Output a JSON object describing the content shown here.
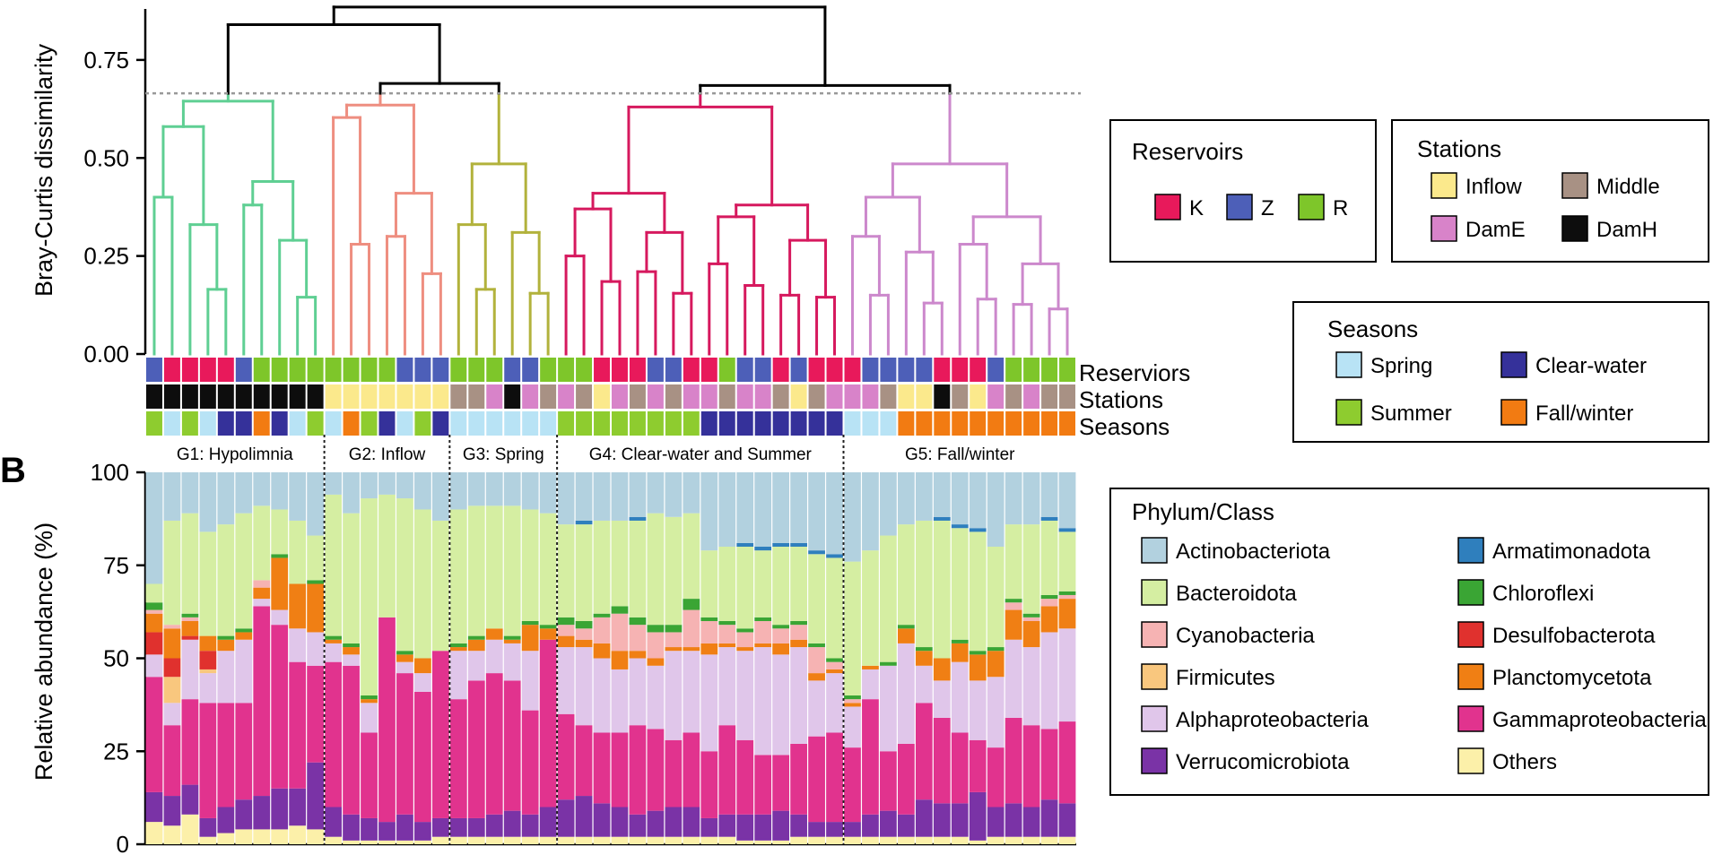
{
  "panel_b_label": "B",
  "chart_data": [
    {
      "type": "dendrogram",
      "ylabel": "Bray-Curtis dissimilarity",
      "yticks": [
        "0.00",
        "0.25",
        "0.50",
        "0.75"
      ],
      "ylim": [
        0,
        0.88
      ],
      "cut_height": 0.665,
      "groups": [
        {
          "name": "G1: Hypolimnia",
          "n": 10,
          "color": "#5fcf93",
          "height": 0.645,
          "subclusters": [
            0.58,
            0.44,
            0.4,
            0.38,
            0.33,
            0.29,
            0.28,
            0.25
          ]
        },
        {
          "name": "G2: Inflow",
          "n": 7,
          "color": "#ee8e80",
          "height": 0.635,
          "subclusters": [
            0.62,
            0.41,
            0.4,
            0.3,
            0.28
          ]
        },
        {
          "name": "G3: Spring",
          "n": 6,
          "color": "#b2b23c",
          "height": 0.485,
          "subclusters": [
            0.33,
            0.31,
            0.28,
            0.25
          ]
        },
        {
          "name": "G4: Clear-water and Summer",
          "n": 16,
          "color": "#d6195e",
          "height": 0.63,
          "subclusters": [
            0.41,
            0.38,
            0.37,
            0.35,
            0.31,
            0.29,
            0.25,
            0.23,
            0.21,
            0.15
          ]
        },
        {
          "name": "G5: Fall/winter",
          "n": 13,
          "color": "#cc88cc",
          "height": 0.485,
          "subclusters": [
            0.4,
            0.35,
            0.3,
            0.28,
            0.26,
            0.23,
            0.19,
            0.17
          ]
        }
      ],
      "top_joins": [
        0.885,
        0.84,
        0.69
      ]
    },
    {
      "type": "categorical_strips",
      "rows": [
        "Reserviors",
        "Stations",
        "Seasons"
      ],
      "reservoirs": [
        "Z",
        "K",
        "K",
        "K",
        "K",
        "Z",
        "R",
        "R",
        "R",
        "R",
        "R",
        "R",
        "R",
        "R",
        "Z",
        "Z",
        "Z",
        "R",
        "R",
        "R",
        "Z",
        "Z",
        "R",
        "R",
        "R",
        "K",
        "K",
        "K",
        "Z",
        "Z",
        "K",
        "K",
        "R",
        "Z",
        "Z",
        "K",
        "Z",
        "K",
        "K",
        "K",
        "Z",
        "Z",
        "Z",
        "Z",
        "K",
        "K",
        "K",
        "Z",
        "R",
        "R",
        "R",
        "R"
      ],
      "stations": [
        "DamH",
        "DamH",
        "DamH",
        "DamH",
        "DamH",
        "DamH",
        "DamH",
        "DamH",
        "DamH",
        "DamH",
        "Inflow",
        "Inflow",
        "Inflow",
        "Inflow",
        "Inflow",
        "Inflow",
        "Inflow",
        "Middle",
        "Middle",
        "DamE",
        "DamH",
        "DamE",
        "Middle",
        "DamE",
        "Middle",
        "Inflow",
        "DamE",
        "Middle",
        "DamE",
        "Middle",
        "DamE",
        "DamE",
        "Middle",
        "DamE",
        "DamE",
        "Middle",
        "Inflow",
        "Middle",
        "DamE",
        "DamE",
        "DamE",
        "Middle",
        "Inflow",
        "Inflow",
        "DamH",
        "Middle",
        "Inflow",
        "DamE",
        "Middle",
        "DamE",
        "Middle",
        "Middle"
      ],
      "seasons": [
        "Summer",
        "Spring",
        "Summer",
        "Spring",
        "Clear-water",
        "Clear-water",
        "Fall/winter",
        "Clear-water",
        "Spring",
        "Summer",
        "Spring",
        "Fall/winter",
        "Summer",
        "Clear-water",
        "Spring",
        "Summer",
        "Clear-water",
        "Spring",
        "Spring",
        "Spring",
        "Spring",
        "Spring",
        "Spring",
        "Summer",
        "Summer",
        "Summer",
        "Summer",
        "Summer",
        "Summer",
        "Summer",
        "Summer",
        "Clear-water",
        "Clear-water",
        "Clear-water",
        "Clear-water",
        "Clear-water",
        "Clear-water",
        "Clear-water",
        "Clear-water",
        "Spring",
        "Spring",
        "Spring",
        "Fall/winter",
        "Fall/winter",
        "Fall/winter",
        "Fall/winter",
        "Fall/winter",
        "Fall/winter",
        "Fall/winter",
        "Fall/winter",
        "Fall/winter",
        "Fall/winter"
      ]
    },
    {
      "type": "stacked_bar",
      "ylabel": "Relative abundance (%)",
      "yticks": [
        "0",
        "25",
        "50",
        "75",
        "100"
      ],
      "ylim": [
        0,
        100
      ],
      "group_sizes": [
        10,
        7,
        6,
        16,
        13
      ],
      "stack_order": [
        "Others",
        "Verrucomicrobiota",
        "Gammaproteobacteria",
        "Alphaproteobacteria",
        "Firmicutes",
        "Desulfobacterota",
        "Planctomycetota",
        "Cyanobacteria",
        "Chloroflexi",
        "Bacteroidota",
        "Armatimonadota",
        "Actinobacteriota"
      ],
      "tops": {
        "Others": [
          6,
          5,
          8,
          2,
          3,
          4,
          4,
          4,
          5,
          4,
          2,
          1,
          1,
          1,
          1,
          1,
          2,
          2,
          2,
          2,
          2,
          2,
          2,
          2,
          2,
          2,
          2,
          2,
          2,
          2,
          2,
          2,
          2,
          1,
          1,
          1,
          2,
          2,
          2,
          2,
          2,
          2,
          2,
          2,
          2,
          2,
          1,
          2,
          2,
          2,
          2,
          2
        ],
        "Verrucomicrobiota": [
          14,
          13,
          16,
          7,
          10,
          12,
          13,
          15,
          15,
          22,
          10,
          8,
          7,
          6,
          8,
          6,
          7,
          7,
          7,
          8,
          9,
          8,
          10,
          12,
          13,
          11,
          10,
          8,
          9,
          10,
          10,
          7,
          8,
          8,
          8,
          9,
          8,
          6,
          6,
          6,
          8,
          9,
          8,
          12,
          11,
          11,
          14,
          10,
          11,
          10,
          12,
          11
        ],
        "Gammaproteobacteria": [
          45,
          32,
          39,
          38,
          38,
          38,
          64,
          59,
          49,
          48,
          49,
          48,
          30,
          61,
          46,
          41,
          52,
          39,
          44,
          46,
          44,
          36,
          55,
          35,
          32,
          30,
          30,
          32,
          31,
          28,
          30,
          25,
          32,
          28,
          24,
          24,
          27,
          29,
          30,
          26,
          39,
          25,
          27,
          38,
          34,
          30,
          28,
          26,
          34,
          32,
          31,
          33
        ],
        "Alphaproteobacteria": [
          51,
          38,
          55,
          46,
          52,
          55,
          66,
          63,
          58,
          57,
          54,
          51,
          38,
          56,
          49,
          46,
          46,
          52,
          52,
          55,
          54,
          52,
          55,
          53,
          53,
          50,
          47,
          50,
          48,
          52,
          52,
          51,
          53,
          52,
          53,
          51,
          53,
          44,
          46,
          37,
          47,
          48,
          54,
          48,
          44,
          49,
          44,
          45,
          55,
          53,
          57,
          58
        ],
        "Firmicutes": [
          51,
          45,
          55,
          47,
          52,
          55,
          66,
          63,
          58,
          57,
          54,
          51,
          38,
          56,
          49,
          46,
          46,
          52,
          52,
          55,
          54,
          52,
          55,
          53,
          53,
          50,
          47,
          50,
          48,
          52,
          52,
          51,
          53,
          52,
          53,
          51,
          53,
          44,
          46,
          37,
          47,
          48,
          54,
          48,
          44,
          49,
          44,
          45,
          55,
          53,
          57,
          58
        ],
        "Desulfobacterota": [
          57,
          50,
          56,
          52,
          52,
          55,
          66,
          63,
          58,
          57,
          54,
          51,
          38,
          56,
          49,
          46,
          46,
          52,
          52,
          55,
          54,
          52,
          55,
          53,
          53,
          50,
          47,
          50,
          48,
          52,
          52,
          51,
          53,
          52,
          53,
          51,
          53,
          44,
          46,
          37,
          47,
          48,
          54,
          48,
          44,
          49,
          44,
          45,
          55,
          53,
          57,
          58
        ],
        "Planctomycetota": [
          62,
          58,
          60,
          56,
          55,
          57,
          69,
          77,
          70,
          70,
          55,
          53,
          39,
          59,
          51,
          50,
          50,
          53,
          55,
          58,
          55,
          59,
          58,
          56,
          55,
          54,
          52,
          52,
          50,
          53,
          53,
          54,
          54,
          53,
          54,
          54,
          55,
          46,
          47,
          38,
          48,
          48,
          58,
          52,
          50,
          54,
          51,
          52,
          63,
          60,
          64,
          66
        ],
        "Cyanobacteria": [
          63,
          59,
          61,
          56,
          55,
          57,
          71,
          77,
          70,
          70,
          55,
          53,
          39,
          59,
          51,
          50,
          50,
          53,
          55,
          58,
          55,
          59,
          58,
          59,
          58,
          61,
          62,
          59,
          57,
          57,
          63,
          60,
          59,
          57,
          60,
          58,
          59,
          53,
          49,
          39,
          48,
          48,
          58,
          52,
          50,
          54,
          51,
          52,
          65,
          61,
          66,
          67
        ],
        "Chloroflexi": [
          65,
          59,
          62,
          56,
          56,
          58,
          71,
          78,
          70,
          71,
          56,
          54,
          40,
          60,
          52,
          50,
          51,
          54,
          56,
          58,
          56,
          60,
          59,
          61,
          60,
          62,
          64,
          61,
          59,
          59,
          66,
          61,
          60,
          58,
          61,
          59,
          60,
          54,
          50,
          40,
          48,
          49,
          59,
          53,
          50,
          55,
          52,
          53,
          66,
          62,
          67,
          68
        ],
        "Bacteroidota": [
          70,
          87,
          89,
          84,
          86,
          89,
          91,
          90,
          87,
          83,
          94,
          89,
          93,
          94,
          93,
          90,
          87,
          90,
          91,
          91,
          91,
          90,
          89,
          86,
          86,
          87,
          87,
          87,
          89,
          88,
          89,
          79,
          80,
          80,
          79,
          80,
          80,
          78,
          77,
          76,
          79,
          83,
          86,
          87,
          87,
          85,
          84,
          80,
          86,
          86,
          87,
          84
        ],
        "Armatimonadota": [
          70,
          87,
          89,
          84,
          86,
          89,
          91,
          90,
          87,
          83,
          94,
          89,
          93,
          94,
          93,
          90,
          87,
          90,
          91,
          91,
          91,
          90,
          89,
          86,
          87,
          87,
          87,
          88,
          89,
          88,
          89,
          79,
          80,
          81,
          80,
          81,
          81,
          79,
          78,
          76,
          79,
          83,
          86,
          87,
          88,
          86,
          85,
          80,
          86,
          86,
          88,
          85
        ],
        "Actinobacteriota": [
          100,
          100,
          100,
          100,
          100,
          100,
          100,
          100,
          100,
          100,
          100,
          100,
          100,
          100,
          100,
          100,
          100,
          100,
          100,
          100,
          100,
          100,
          100,
          100,
          100,
          100,
          100,
          100,
          100,
          100,
          100,
          100,
          100,
          100,
          100,
          100,
          100,
          100,
          100,
          100,
          100,
          100,
          100,
          100,
          100,
          100,
          100,
          100,
          100,
          100,
          100,
          100
        ]
      }
    }
  ],
  "legends": {
    "reservoirs": {
      "title": "Reservoirs",
      "items": [
        {
          "label": "K",
          "color": "#e8195b"
        },
        {
          "label": "Z",
          "color": "#4d5fb8"
        },
        {
          "label": "R",
          "color": "#7ec62a"
        }
      ]
    },
    "stations": {
      "title": "Stations",
      "items": [
        {
          "label": "Inflow",
          "color": "#fbe98c"
        },
        {
          "label": "Middle",
          "color": "#a89184"
        },
        {
          "label": "DamE",
          "color": "#d883c9"
        },
        {
          "label": "DamH",
          "color": "#0d0d0d"
        }
      ]
    },
    "seasons": {
      "title": "Seasons",
      "items": [
        {
          "label": "Spring",
          "color": "#b8e3f5"
        },
        {
          "label": "Clear-water",
          "color": "#35319a"
        },
        {
          "label": "Summer",
          "color": "#8ecc2f"
        },
        {
          "label": "Fall/winter",
          "color": "#f27b12"
        }
      ]
    },
    "phylum": {
      "title": "Phylum/Class",
      "items": [
        {
          "label": "Actinobacteriota",
          "color": "#b2d1df"
        },
        {
          "label": "Armatimonadota",
          "color": "#2f7fbd"
        },
        {
          "label": "Bacteroidota",
          "color": "#d5eea2"
        },
        {
          "label": "Chloroflexi",
          "color": "#3aa534"
        },
        {
          "label": "Cyanobacteria",
          "color": "#f6b3b3"
        },
        {
          "label": "Desulfobacterota",
          "color": "#e0312e"
        },
        {
          "label": "Firmicutes",
          "color": "#f9c77e"
        },
        {
          "label": "Planctomycetota",
          "color": "#f07f14"
        },
        {
          "label": "Alphaproteobacteria",
          "color": "#e0c6ea"
        },
        {
          "label": "Gammaproteobacteria",
          "color": "#e1338e"
        },
        {
          "label": "Verrucomicrobiota",
          "color": "#7a33a6"
        },
        {
          "label": "Others",
          "color": "#fcf0a9"
        }
      ]
    }
  }
}
